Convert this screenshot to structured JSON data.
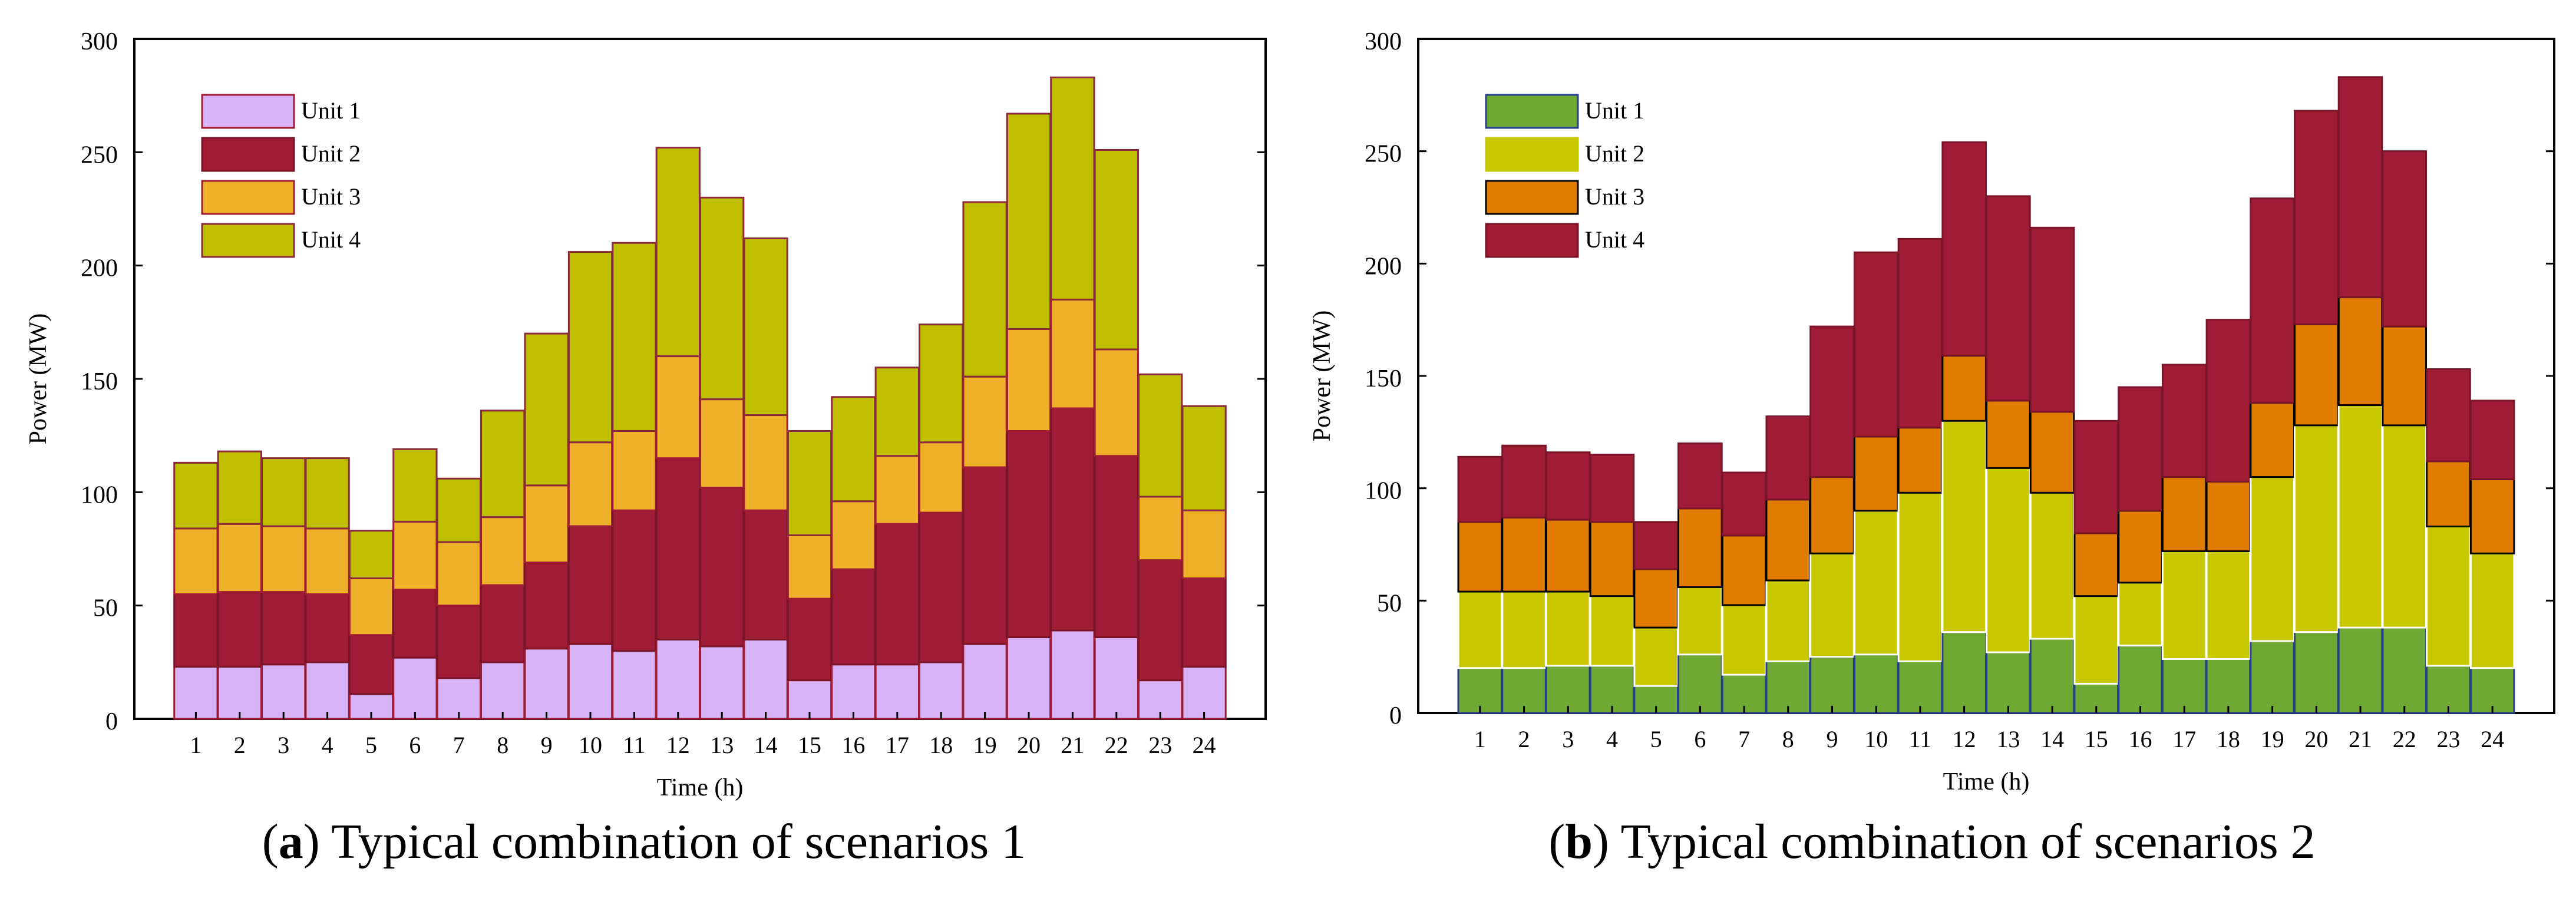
{
  "chart_data": [
    {
      "type": "bar",
      "stacked": true,
      "caption_letter": "a",
      "caption_text": "Typical combination of scenarios 1",
      "xlabel": "Time (h)",
      "ylabel": "Power (MW)",
      "ylim": [
        0,
        300
      ],
      "yticks": [
        "0",
        "50",
        "100",
        "150",
        "200",
        "250",
        "300"
      ],
      "categories": [
        "1",
        "2",
        "3",
        "4",
        "5",
        "6",
        "7",
        "8",
        "9",
        "10",
        "11",
        "12",
        "13",
        "14",
        "15",
        "16",
        "17",
        "18",
        "19",
        "20",
        "21",
        "22",
        "23",
        "24"
      ],
      "legend_position": "top-left",
      "grid": false,
      "series": [
        {
          "name": "Unit 1",
          "color": "#d9b3f7",
          "edge": "#a01c35",
          "values": [
            23,
            23,
            24,
            25,
            11,
            27,
            18,
            25,
            31,
            33,
            30,
            35,
            32,
            35,
            17,
            24,
            24,
            25,
            33,
            36,
            39,
            36,
            17,
            23
          ]
        },
        {
          "name": "Unit 2",
          "color": "#a01c35",
          "edge": "#7a1428",
          "values": [
            32,
            33,
            32,
            30,
            26,
            30,
            32,
            34,
            38,
            52,
            62,
            80,
            70,
            57,
            36,
            42,
            62,
            66,
            78,
            91,
            98,
            80,
            53,
            39
          ]
        },
        {
          "name": "Unit 3",
          "color": "#f0b12a",
          "edge": "#a01c35",
          "values": [
            29,
            30,
            29,
            29,
            25,
            30,
            28,
            30,
            34,
            37,
            35,
            45,
            39,
            42,
            28,
            30,
            30,
            31,
            40,
            45,
            48,
            47,
            28,
            30
          ]
        },
        {
          "name": "Unit 4",
          "color": "#bfbf00",
          "edge": "#8a2a3a",
          "values": [
            29,
            32,
            30,
            31,
            21,
            32,
            28,
            47,
            67,
            84,
            83,
            92,
            89,
            78,
            46,
            46,
            39,
            52,
            77,
            95,
            98,
            88,
            54,
            46
          ]
        }
      ]
    },
    {
      "type": "bar",
      "stacked": true,
      "caption_letter": "b",
      "caption_text": "Typical combination of scenarios 2",
      "xlabel": "Time (h)",
      "ylabel": "Power (MW)",
      "ylim": [
        0,
        300
      ],
      "yticks": [
        "0",
        "50",
        "100",
        "150",
        "200",
        "250",
        "300"
      ],
      "categories": [
        "1",
        "2",
        "3",
        "4",
        "5",
        "6",
        "7",
        "8",
        "9",
        "10",
        "11",
        "12",
        "13",
        "14",
        "15",
        "16",
        "17",
        "18",
        "19",
        "20",
        "21",
        "22",
        "23",
        "24"
      ],
      "legend_position": "top-left",
      "grid": false,
      "series": [
        {
          "name": "Unit 1",
          "color": "#6fa832",
          "edge": "#2a3f8a",
          "values": [
            20,
            20,
            21,
            21,
            12,
            26,
            17,
            23,
            25,
            26,
            23,
            36,
            27,
            33,
            13,
            30,
            24,
            24,
            32,
            36,
            38,
            38,
            21,
            20
          ]
        },
        {
          "name": "Unit 2",
          "color": "#c8c800",
          "edge": "#ffffff",
          "values": [
            34,
            34,
            33,
            31,
            26,
            30,
            31,
            36,
            46,
            64,
            75,
            94,
            82,
            65,
            39,
            28,
            48,
            48,
            73,
            92,
            99,
            90,
            62,
            51
          ]
        },
        {
          "name": "Unit 3",
          "color": "#e07c00",
          "edge": "#000000",
          "values": [
            31,
            33,
            32,
            33,
            26,
            35,
            31,
            36,
            34,
            33,
            29,
            29,
            30,
            36,
            28,
            32,
            33,
            31,
            33,
            45,
            48,
            44,
            29,
            33
          ]
        },
        {
          "name": "Unit 4",
          "color": "#a01c35",
          "edge": "#7a1428",
          "values": [
            29,
            32,
            30,
            30,
            21,
            29,
            28,
            37,
            67,
            82,
            84,
            95,
            91,
            82,
            50,
            55,
            50,
            72,
            91,
            95,
            98,
            78,
            41,
            35
          ]
        }
      ]
    }
  ]
}
